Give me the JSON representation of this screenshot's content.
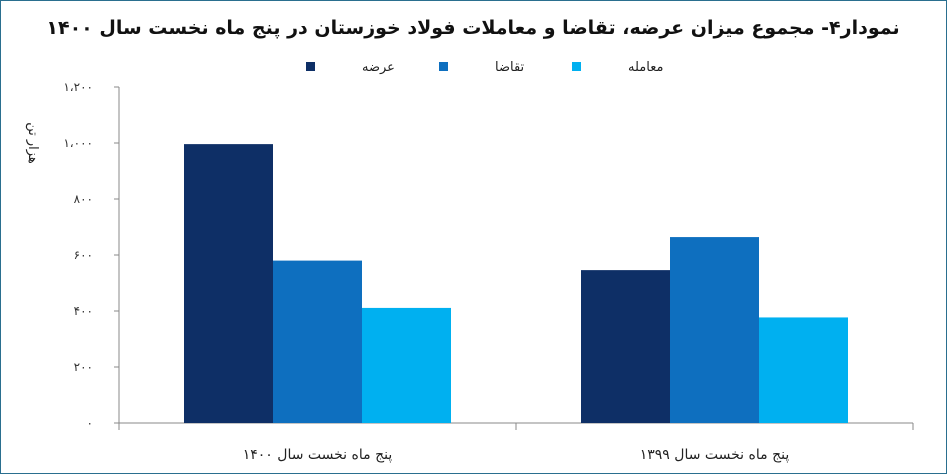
{
  "chart_data": {
    "type": "bar",
    "title": "نمودار۴- مجموع میزان عرضه، تقاضا و معاملات فولاد خوزستان در پنج ماه نخست سال ۱۴۰۰",
    "ylabel": "هزار تن",
    "xlabel": "",
    "categories": [
      "پنج  ماه  نخست سال  ۱۴۰۰",
      "پنج ماه نخست سال ۱۳۹۹"
    ],
    "series": [
      {
        "name": "عرضه",
        "color": "#0e2f66",
        "values": [
          996,
          546
        ]
      },
      {
        "name": "تقاضا",
        "color": "#0e6fbf",
        "values": [
          580,
          664
        ]
      },
      {
        "name": "معامله",
        "color": "#00b0f0",
        "values": [
          411,
          377
        ]
      }
    ],
    "ylim": [
      0,
      1200
    ],
    "yticks": [
      0,
      200,
      400,
      600,
      800,
      1000,
      1200
    ],
    "ytick_labels": [
      "۰",
      "۲۰۰",
      "۴۰۰",
      "۶۰۰",
      "۸۰۰",
      "۱،۰۰۰",
      "۱،۲۰۰"
    ],
    "legend_position": "top",
    "grid": false
  }
}
